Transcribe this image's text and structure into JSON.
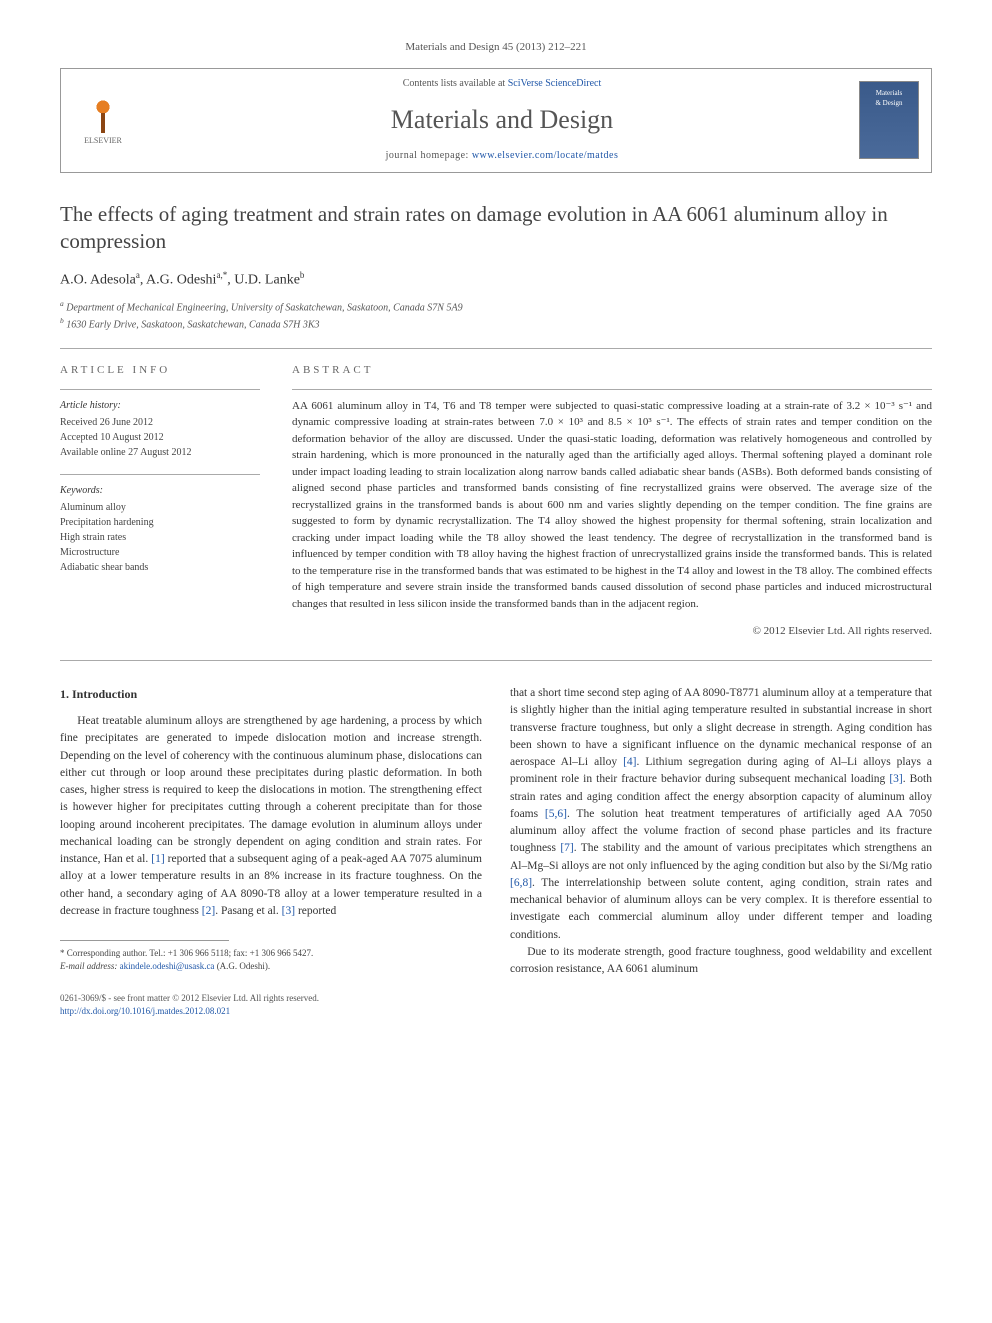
{
  "journal_ref": "Materials and Design 45 (2013) 212–221",
  "header": {
    "contents_prefix": "Contents lists available at ",
    "contents_link": "SciVerse ScienceDirect",
    "journal_title": "Materials and Design",
    "homepage_prefix": "journal homepage: ",
    "homepage_link": "www.elsevier.com/locate/matdes",
    "publisher_name": "ELSEVIER",
    "cover_line1": "Materials",
    "cover_line2": "& Design"
  },
  "article": {
    "title": "The effects of aging treatment and strain rates on damage evolution in AA 6061 aluminum alloy in compression",
    "authors_html": "A.O. Adesola<sup>a</sup>, A.G. Odeshi<sup>a,*</sup>, U.D. Lanke<sup>b</sup>",
    "affiliations": {
      "a": "Department of Mechanical Engineering, University of Saskatchewan, Saskatoon, Canada S7N 5A9",
      "b": "1630 Early Drive, Saskatoon, Saskatchewan, Canada S7H 3K3"
    }
  },
  "info": {
    "heading": "ARTICLE INFO",
    "history_head": "Article history:",
    "received": "Received 26 June 2012",
    "accepted": "Accepted 10 August 2012",
    "online": "Available online 27 August 2012",
    "keywords_head": "Keywords:",
    "keywords": [
      "Aluminum alloy",
      "Precipitation hardening",
      "High strain rates",
      "Microstructure",
      "Adiabatic shear bands"
    ]
  },
  "abstract": {
    "heading": "ABSTRACT",
    "text": "AA 6061 aluminum alloy in T4, T6 and T8 temper were subjected to quasi-static compressive loading at a strain-rate of 3.2 × 10⁻³ s⁻¹ and dynamic compressive loading at strain-rates between 7.0 × 10³ and 8.5 × 10³ s⁻¹. The effects of strain rates and temper condition on the deformation behavior of the alloy are discussed. Under the quasi-static loading, deformation was relatively homogeneous and controlled by strain hardening, which is more pronounced in the naturally aged than the artificially aged alloys. Thermal softening played a dominant role under impact loading leading to strain localization along narrow bands called adiabatic shear bands (ASBs). Both deformed bands consisting of aligned second phase particles and transformed bands consisting of fine recrystallized grains were observed. The average size of the recrystallized grains in the transformed bands is about 600 nm and varies slightly depending on the temper condition. The fine grains are suggested to form by dynamic recrystallization. The T4 alloy showed the highest propensity for thermal softening, strain localization and cracking under impact loading while the T8 alloy showed the least tendency. The degree of recrystallization in the transformed band is influenced by temper condition with T8 alloy having the highest fraction of unrecrystallized grains inside the transformed bands. This is related to the temperature rise in the transformed bands that was estimated to be highest in the T4 alloy and lowest in the T8 alloy. The combined effects of high temperature and severe strain inside the transformed bands caused dissolution of second phase particles and induced microstructural changes that resulted in less silicon inside the transformed bands than in the adjacent region.",
    "copyright": "© 2012 Elsevier Ltd. All rights reserved."
  },
  "body": {
    "section_number": "1.",
    "section_title": "Introduction",
    "col1_p1": "Heat treatable aluminum alloys are strengthened by age hardening, a process by which fine precipitates are generated to impede dislocation motion and increase strength. Depending on the level of coherency with the continuous aluminum phase, dislocations can either cut through or loop around these precipitates during plastic deformation. In both cases, higher stress is required to keep the dislocations in motion. The strengthening effect is however higher for precipitates cutting through a coherent precipitate than for those looping around incoherent precipitates. The damage evolution in aluminum alloys under mechanical loading can be strongly dependent on aging condition and strain rates. For instance, Han et al. [1] reported that a subsequent aging of a peak-aged AA 7075 aluminum alloy at a lower temperature results in an 8% increase in its fracture toughness. On the other hand, a secondary aging of AA 8090-T8 alloy at a lower temperature resulted in a decrease in fracture toughness [2]. Pasang et al. [3] reported",
    "col2_p1": "that a short time second step aging of AA 8090-T8771 aluminum alloy at a temperature that is slightly higher than the initial aging temperature resulted in substantial increase in short transverse fracture toughness, but only a slight decrease in strength. Aging condition has been shown to have a significant influence on the dynamic mechanical response of an aerospace Al–Li alloy [4]. Lithium segregation during aging of Al–Li alloys plays a prominent role in their fracture behavior during subsequent mechanical loading [3]. Both strain rates and aging condition affect the energy absorption capacity of aluminum alloy foams [5,6]. The solution heat treatment temperatures of artificially aged AA 7050 aluminum alloy affect the volume fraction of second phase particles and its fracture toughness [7]. The stability and the amount of various precipitates which strengthens an Al–Mg–Si alloys are not only influenced by the aging condition but also by the Si/Mg ratio [6,8]. The interrelationship between solute content, aging condition, strain rates and mechanical behavior of aluminum alloys can be very complex. It is therefore essential to investigate each commercial aluminum alloy under different temper and loading conditions.",
    "col2_p2": "Due to its moderate strength, good fracture toughness, good weldability and excellent corrosion resistance, AA 6061 aluminum"
  },
  "footnotes": {
    "corresponding": "* Corresponding author. Tel.: +1 306 966 5118; fax: +1 306 966 5427.",
    "email_label": "E-mail address:",
    "email": "akindele.odeshi@usask.ca",
    "email_owner": "(A.G. Odeshi)."
  },
  "footer": {
    "issn": "0261-3069/$ - see front matter © 2012 Elsevier Ltd. All rights reserved.",
    "doi_label": "http://dx.doi.org/",
    "doi": "10.1016/j.matdes.2012.08.021"
  },
  "colors": {
    "link": "#2057a8",
    "text": "#333333",
    "muted": "#555555",
    "border": "#999999"
  }
}
